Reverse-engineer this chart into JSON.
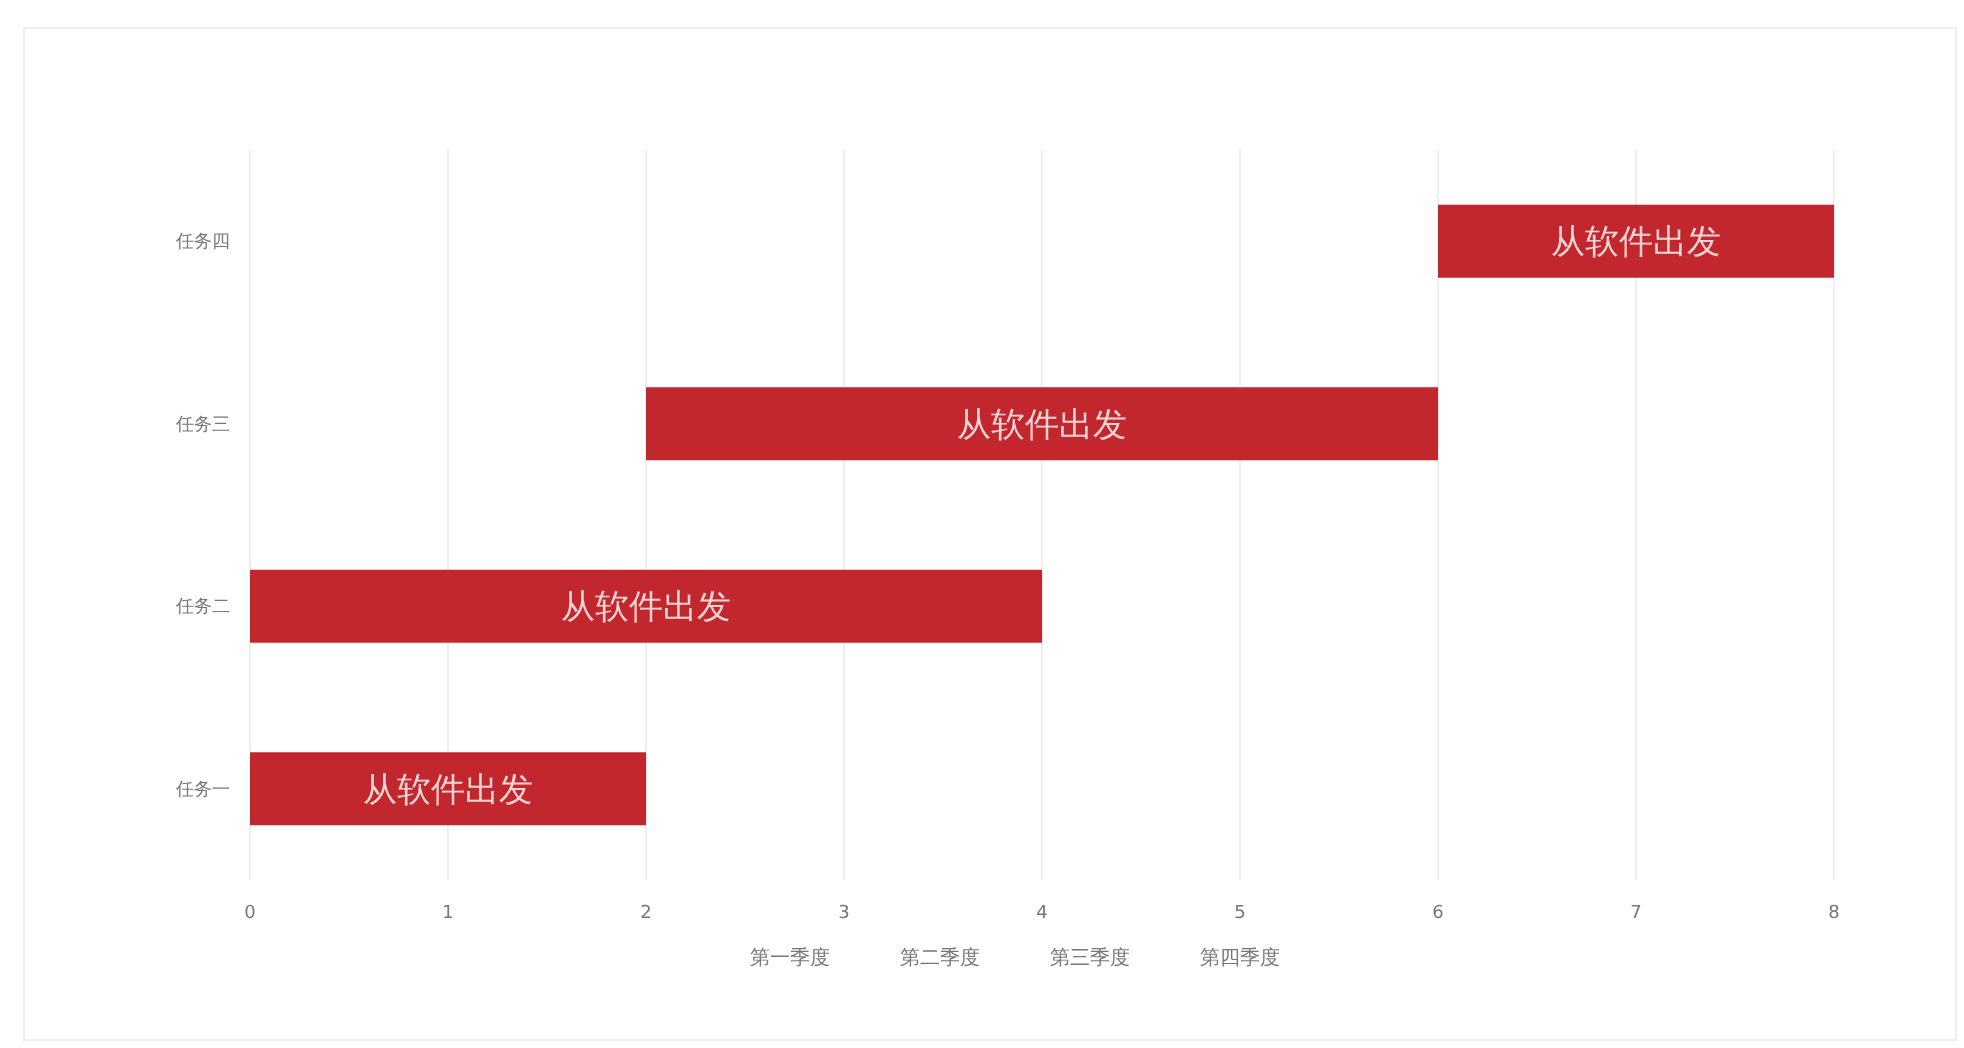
{
  "chart_data": {
    "type": "bar",
    "orientation": "horizontal",
    "categories": [
      "任务四",
      "任务三",
      "任务二",
      "任务一"
    ],
    "base": [
      6,
      2,
      0,
      0
    ],
    "values": [
      2,
      4,
      4,
      2
    ],
    "value_labels": [
      "从软件出发",
      "从软件出发",
      "从软件出发",
      "从软件出发"
    ],
    "color": "#c1272d",
    "xlim": [
      0,
      8
    ],
    "xticks": [
      0,
      1,
      2,
      3,
      4,
      5,
      6,
      7,
      8
    ],
    "grid": "x",
    "annotations": [
      "第一季度",
      "第二季度",
      "第三季度",
      "第四季度"
    ]
  }
}
